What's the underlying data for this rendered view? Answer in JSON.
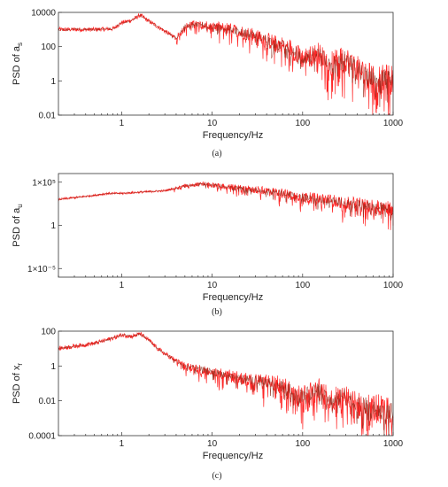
{
  "chart_data": [
    {
      "type": "line",
      "panel": "a",
      "caption": "(a)",
      "xlabel": "Frequency/Hz",
      "ylabel": "PSD of a",
      "ylabel_sub": "s",
      "xscale": "log",
      "yscale": "log",
      "xlim": [
        0.2,
        1000
      ],
      "ylim": [
        0.01,
        10000
      ],
      "xticks": [
        {
          "value": 1,
          "label": "1"
        },
        {
          "value": 10,
          "label": "10"
        },
        {
          "value": 100,
          "label": "100"
        },
        {
          "value": 1000,
          "label": "1000"
        }
      ],
      "yticks": [
        {
          "value": 0.01,
          "label": "0.01"
        },
        {
          "value": 1,
          "label": "1"
        },
        {
          "value": 100,
          "label": "100"
        },
        {
          "value": 10000,
          "label": "10000"
        }
      ],
      "grid": false,
      "series": [
        {
          "color": "#ff0000",
          "style": "noisy, dense at high frequency",
          "x": [
            0.2,
            0.5,
            0.8,
            1.0,
            1.3,
            1.6,
            2.0,
            2.5,
            3,
            4,
            5,
            6,
            8,
            10,
            15,
            20,
            30,
            50,
            70,
            100,
            150,
            200,
            300,
            400,
            500,
            700,
            1000
          ],
          "y": [
            1000,
            1000,
            1100,
            2500,
            3500,
            7000,
            3000,
            1500,
            800,
            300,
            1500,
            2000,
            2000,
            1500,
            1200,
            700,
            500,
            150,
            100,
            20,
            40,
            10,
            20,
            5,
            2,
            1.5,
            1
          ]
        },
        {
          "color": "#8b2a1a",
          "style": "dark overlay",
          "x": [
            0.2,
            0.5,
            0.8,
            1.0,
            1.3,
            1.6,
            2.0,
            2.5,
            3,
            4,
            5,
            6,
            8,
            10,
            15,
            20,
            30,
            50,
            70,
            100,
            150,
            200,
            300,
            400,
            500,
            700,
            1000
          ],
          "y": [
            1000,
            1000,
            1100,
            2500,
            3500,
            7000,
            3000,
            1500,
            800,
            300,
            1500,
            2000,
            2000,
            1500,
            1200,
            700,
            500,
            150,
            100,
            20,
            40,
            10,
            20,
            5,
            2,
            1.5,
            1
          ]
        }
      ]
    },
    {
      "type": "line",
      "panel": "b",
      "caption": "(b)",
      "xlabel": "Frequency/Hz",
      "ylabel": "PSD of a",
      "ylabel_sub": "u",
      "xscale": "log",
      "yscale": "log",
      "xlim": [
        0.2,
        1000
      ],
      "ylim": [
        1e-06,
        1000000
      ],
      "xticks": [
        {
          "value": 1,
          "label": "1"
        },
        {
          "value": 10,
          "label": "10"
        },
        {
          "value": 100,
          "label": "100"
        },
        {
          "value": 1000,
          "label": "1000"
        }
      ],
      "yticks": [
        {
          "value": 1e-05,
          "label": "1×10⁻⁵"
        },
        {
          "value": 1,
          "label": "1"
        },
        {
          "value": 100000,
          "label": "1×10⁵"
        }
      ],
      "grid": false,
      "series": [
        {
          "color": "#ff0000",
          "style": "noisy, dense at high frequency",
          "x": [
            0.2,
            0.5,
            0.7,
            1.0,
            2.0,
            3.0,
            5.0,
            8.0,
            10,
            20,
            50,
            100,
            200,
            500,
            1000
          ],
          "y": [
            1000,
            3000,
            5000,
            5000,
            8000,
            10000,
            40000,
            70000,
            50000,
            20000,
            8000,
            2000,
            800,
            200,
            80
          ]
        },
        {
          "color": "#8b2a1a",
          "style": "dark overlay",
          "x": [
            0.2,
            0.5,
            0.7,
            1.0,
            2.0,
            3.0,
            5.0,
            8.0,
            10,
            20,
            50,
            100,
            200,
            500,
            1000
          ],
          "y": [
            1000,
            3000,
            5000,
            5000,
            8000,
            10000,
            40000,
            70000,
            50000,
            20000,
            8000,
            2000,
            800,
            200,
            80
          ]
        }
      ]
    },
    {
      "type": "line",
      "panel": "c",
      "caption": "(c)",
      "xlabel": "Frequency/Hz",
      "ylabel": "PSD of x",
      "ylabel_sub": "r",
      "xscale": "log",
      "yscale": "log",
      "xlim": [
        0.2,
        1000
      ],
      "ylim": [
        0.0001,
        100
      ],
      "xticks": [
        {
          "value": 1,
          "label": "1"
        },
        {
          "value": 10,
          "label": "10"
        },
        {
          "value": 100,
          "label": "100"
        },
        {
          "value": 1000,
          "label": "1000"
        }
      ],
      "yticks": [
        {
          "value": 0.0001,
          "label": "0.0001"
        },
        {
          "value": 0.01,
          "label": "0.01"
        },
        {
          "value": 1,
          "label": "1"
        },
        {
          "value": 100,
          "label": "100"
        }
      ],
      "grid": false,
      "series": [
        {
          "color": "#ff0000",
          "style": "noisy, dense at high frequency",
          "x": [
            0.2,
            0.5,
            0.8,
            1.0,
            1.3,
            1.6,
            2.0,
            2.5,
            3,
            5,
            10,
            20,
            50,
            100,
            150,
            200,
            300,
            400,
            500,
            1000
          ],
          "y": [
            10,
            20,
            40,
            60,
            50,
            70,
            30,
            10,
            5,
            1.0,
            0.5,
            0.2,
            0.1,
            0.02,
            0.05,
            0.01,
            0.02,
            0.005,
            0.005,
            0.002
          ]
        },
        {
          "color": "#8b2a1a",
          "style": "dark overlay",
          "x": [
            0.2,
            0.5,
            0.8,
            1.0,
            1.3,
            1.6,
            2.0,
            2.5,
            3,
            5,
            10,
            20,
            50,
            100,
            150,
            200,
            300,
            400,
            500,
            1000
          ],
          "y": [
            10,
            20,
            40,
            60,
            50,
            70,
            30,
            10,
            5,
            1.0,
            0.5,
            0.2,
            0.1,
            0.02,
            0.05,
            0.01,
            0.02,
            0.005,
            0.005,
            0.002
          ]
        }
      ]
    }
  ]
}
